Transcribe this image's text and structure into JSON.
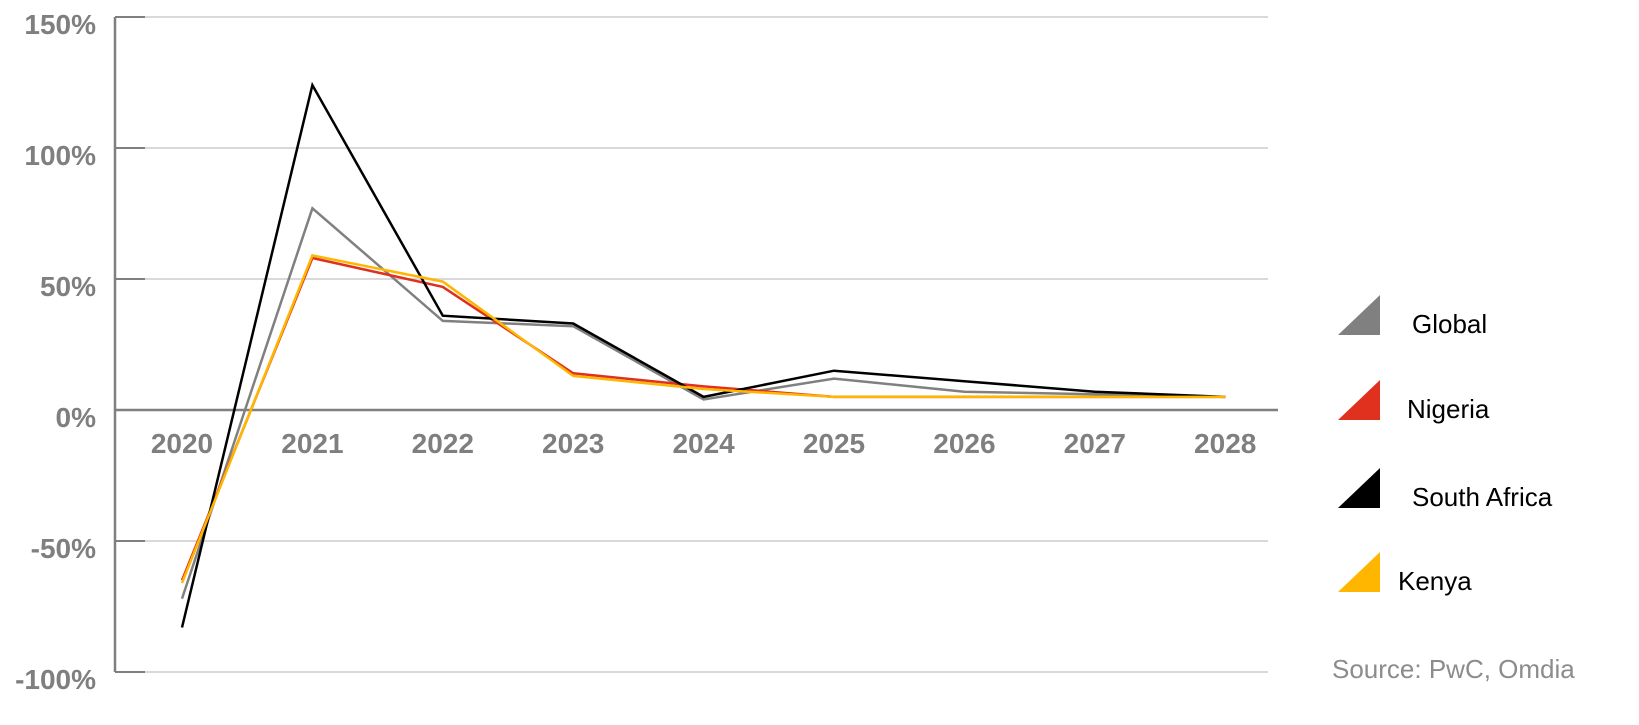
{
  "chart_data": {
    "type": "line",
    "x": [
      "2020",
      "2021",
      "2022",
      "2023",
      "2024",
      "2025",
      "2026",
      "2027",
      "2028"
    ],
    "series": [
      {
        "name": "Global",
        "color": "#808080",
        "values": [
          -72,
          77,
          34,
          32,
          4,
          12,
          7,
          6,
          5
        ]
      },
      {
        "name": "Nigeria",
        "color": "#e0301e",
        "values": [
          -65,
          58,
          47,
          14,
          9,
          5,
          5,
          5,
          5
        ]
      },
      {
        "name": "South Africa",
        "color": "#000000",
        "values": [
          -83,
          124,
          36,
          33,
          5,
          15,
          11,
          7,
          5
        ]
      },
      {
        "name": "Kenya",
        "color": "#ffb600",
        "values": [
          -66,
          59,
          49,
          13,
          8,
          5,
          5,
          5,
          5
        ]
      }
    ],
    "y_ticks": [
      "150%",
      "100%",
      "50%",
      "0%",
      "-50%",
      "-100%"
    ],
    "ylim": [
      -100,
      150
    ],
    "grid": true,
    "legend_position": "right",
    "source": "Source: PwC, Omdia"
  }
}
